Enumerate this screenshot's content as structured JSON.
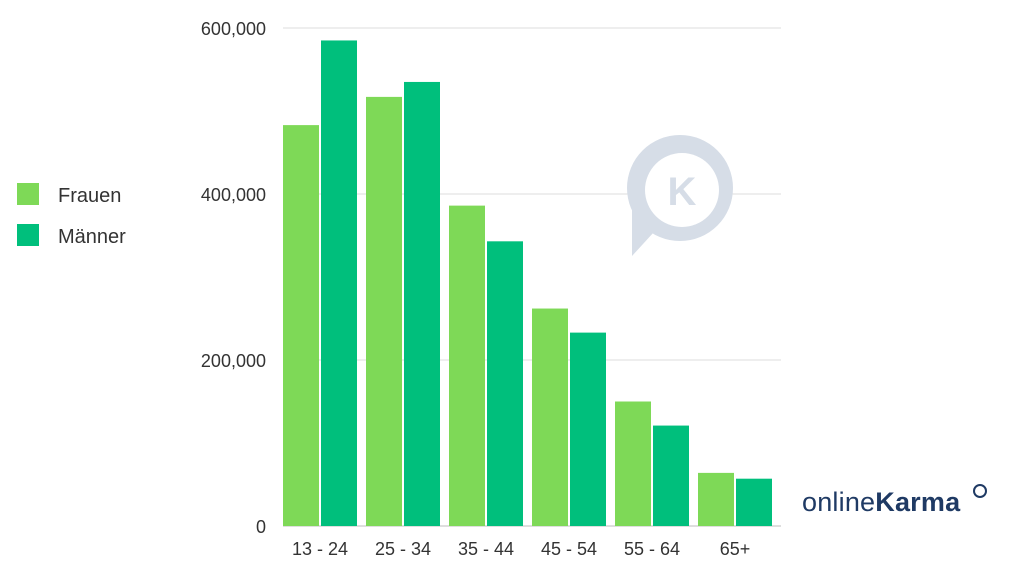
{
  "chart_data": {
    "type": "bar",
    "categories": [
      "13 - 24",
      "25 - 34",
      "35 - 44",
      "45 - 54",
      "55 - 64",
      "65+"
    ],
    "series": [
      {
        "name": "Frauen",
        "color": "#7ed957",
        "values": [
          483000,
          517000,
          386000,
          262000,
          150000,
          64000
        ]
      },
      {
        "name": "Männer",
        "color": "#00bf7c",
        "values": [
          585000,
          535000,
          343000,
          233000,
          121000,
          57000
        ]
      }
    ],
    "ylim": [
      0,
      600000
    ],
    "yticks": [
      0,
      200000,
      400000,
      600000
    ],
    "ytick_labels": [
      "0",
      "200,000",
      "400,000",
      "600,000"
    ],
    "grid": true,
    "legend_position": "left"
  },
  "branding": {
    "logo_text_light": "online",
    "logo_text_bold": "Karma",
    "watermark_letter": "K"
  }
}
